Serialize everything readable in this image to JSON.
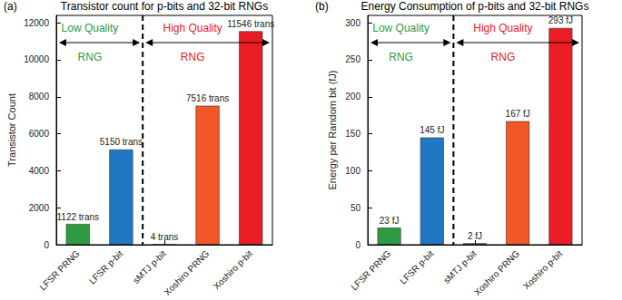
{
  "chart_data": [
    {
      "type": "bar",
      "panel_label": "(a)",
      "title": "Transistor count for p-bits and 32-bit RNGs",
      "y_label": "Transistor Count",
      "categories": [
        "LFSR PRNG",
        "LFSR p-bit",
        "sMTJ p-bit",
        "Xoshiro PRNG",
        "Xoshiro p-bit"
      ],
      "values": [
        1122,
        5150,
        4,
        7516,
        11546
      ],
      "value_labels": [
        "1122 trans",
        "5150 trans",
        "4 trans",
        "7516 trans",
        "11546 trans"
      ],
      "colors": [
        "#2e9b43",
        "#1f78c1",
        "#7e2f8e",
        "#f2572a",
        "#ea1c24"
      ],
      "ylim": [
        0,
        12400
      ],
      "yticks": [
        0,
        2000,
        4000,
        6000,
        8000,
        10000,
        12000
      ],
      "grid": false,
      "data_labels": true,
      "annotations": [
        {
          "text": "Low Quality\nRNG",
          "color": "#2e9b43",
          "from": "LFSR PRNG",
          "to": "LFSR p-bit"
        },
        {
          "text": "High Quality\nRNG",
          "color": "#e8202a",
          "from": "sMTJ p-bit",
          "to": "Xoshiro p-bit"
        }
      ]
    },
    {
      "type": "bar",
      "panel_label": "(b)",
      "title": "Energy Consumption of p-bits and 32-bit RNGs",
      "y_label": "Energy per Random bit (fJ)",
      "categories": [
        "LFSR PRNG",
        "LFSR p-bit",
        "sMTJ p-bit",
        "Xoshiro PRNG",
        "Xoshiro p-bit"
      ],
      "values": [
        23,
        145,
        2,
        167,
        293
      ],
      "value_labels": [
        "23 fJ",
        "145 fJ",
        "2 fJ",
        "167 fJ",
        "293 fJ"
      ],
      "colors": [
        "#2e9b43",
        "#1f78c1",
        "#7e2f8e",
        "#f2572a",
        "#ea1c24"
      ],
      "ylim": [
        0,
        310
      ],
      "yticks": [
        0,
        50,
        100,
        150,
        200,
        250,
        300
      ],
      "grid": false,
      "data_labels": true,
      "annotations": [
        {
          "text": "Low Quality\nRNG",
          "color": "#2e9b43",
          "from": "LFSR PRNG",
          "to": "LFSR p-bit"
        },
        {
          "text": "High Quality\nRNG",
          "color": "#e8202a",
          "from": "sMTJ p-bit",
          "to": "Xoshiro p-bit"
        }
      ]
    }
  ]
}
